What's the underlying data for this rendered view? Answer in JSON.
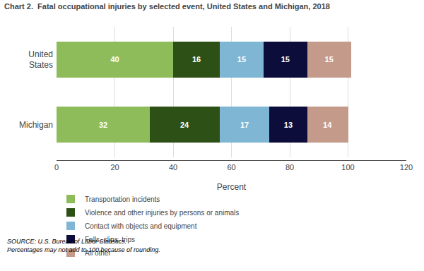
{
  "chart_data": {
    "type": "bar",
    "orientation": "horizontal",
    "stacked": true,
    "title": "Chart 2.  Fatal occupational injuries by selected event, United States and Michigan, 2018",
    "categories": [
      "United\nStates",
      "Michigan"
    ],
    "series": [
      {
        "name": "Transportation incidents",
        "color": "#8fbc5a",
        "values": [
          40,
          32
        ]
      },
      {
        "name": "Violence and other injuries by persons or animals",
        "color": "#2d5016",
        "values": [
          16,
          24
        ]
      },
      {
        "name": "Contact with objects and equipment",
        "color": "#7eb6d4",
        "values": [
          15,
          17
        ]
      },
      {
        "name": "Falls, slips, trips",
        "color": "#0d0d3b",
        "values": [
          15,
          13
        ]
      },
      {
        "name": "All other",
        "color": "#c49a8a",
        "values": [
          15,
          14
        ]
      }
    ],
    "xlabel": "Percent",
    "xlim": [
      0,
      120
    ],
    "xticks": [
      0,
      20,
      40,
      60,
      80,
      100,
      120
    ],
    "grid": true,
    "data_labels": true,
    "legend": "bottom",
    "annotations": [
      "SOURCE: U.S. Bureau of Labor Statistics.\nPercentages may not add to 100 because of rounding."
    ]
  }
}
